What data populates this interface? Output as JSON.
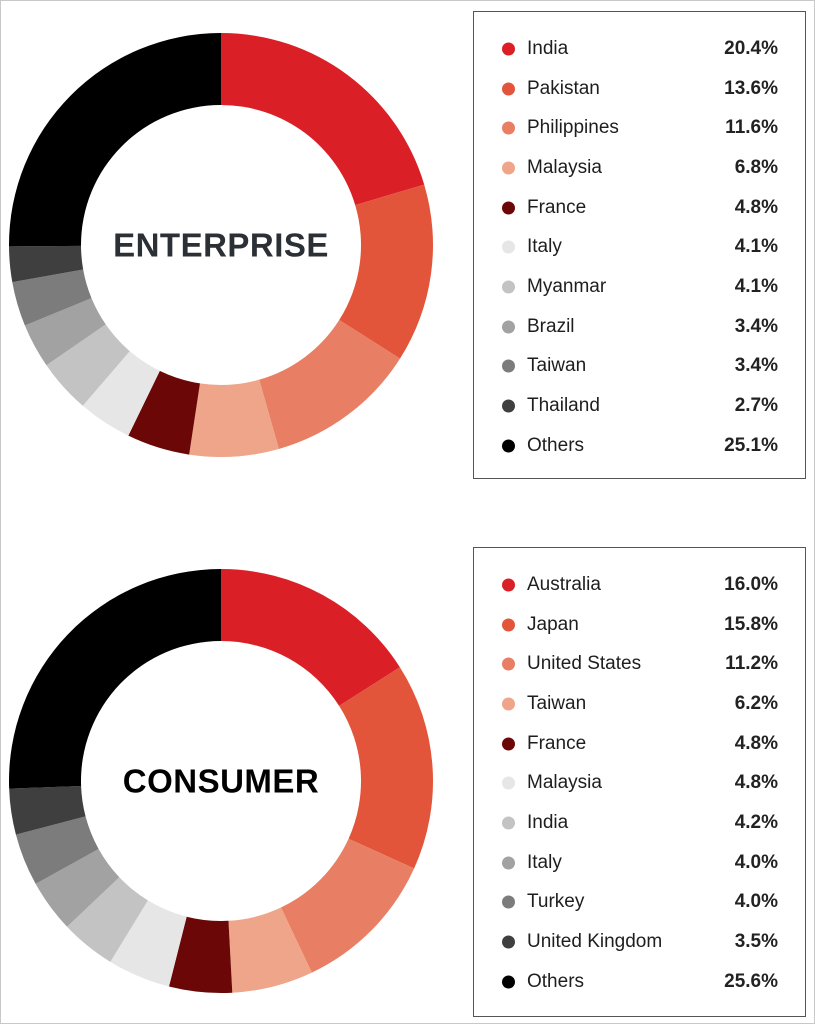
{
  "chart_data": [
    {
      "type": "pie",
      "donut": true,
      "center_label": "ENTERPRISE",
      "categories": [
        "India",
        "Pakistan",
        "Philippines",
        "Malaysia",
        "France",
        "Italy",
        "Myanmar",
        "Brazil",
        "Taiwan",
        "Thailand",
        "Others"
      ],
      "values": [
        20.4,
        13.6,
        11.6,
        6.8,
        4.8,
        4.1,
        4.1,
        3.4,
        3.4,
        2.7,
        25.1
      ],
      "value_labels": [
        "20.4%",
        "13.6%",
        "11.6%",
        "6.8%",
        "4.8%",
        "4.1%",
        "4.1%",
        "3.4%",
        "3.4%",
        "2.7%",
        "25.1%"
      ],
      "colors": [
        "#db1f26",
        "#e2553a",
        "#e87f64",
        "#eea58a",
        "#6b0707",
        "#e6e6e6",
        "#c3c3c3",
        "#a2a2a2",
        "#7c7c7c",
        "#3f3f3f",
        "#000000"
      ],
      "center_label_color": "#2b3036",
      "legend_placement": "right"
    },
    {
      "type": "pie",
      "donut": true,
      "center_label": "CONSUMER",
      "categories": [
        "Australia",
        "Japan",
        "United States",
        "Taiwan",
        "France",
        "Malaysia",
        "India",
        "Italy",
        "Turkey",
        "United Kingdom",
        "Others"
      ],
      "values": [
        16.0,
        15.8,
        11.2,
        6.2,
        4.8,
        4.8,
        4.2,
        4.0,
        4.0,
        3.5,
        25.6
      ],
      "value_labels": [
        "16.0%",
        "15.8%",
        "11.2%",
        "6.2%",
        "4.8%",
        "4.8%",
        "4.2%",
        "4.0%",
        "4.0%",
        "3.5%",
        "25.6%"
      ],
      "colors": [
        "#db1f26",
        "#e2553a",
        "#e87f64",
        "#eea58a",
        "#6b0707",
        "#e6e6e6",
        "#c3c3c3",
        "#a2a2a2",
        "#7c7c7c",
        "#3f3f3f",
        "#000000"
      ],
      "center_label_color": "#000000",
      "legend_placement": "right"
    }
  ]
}
